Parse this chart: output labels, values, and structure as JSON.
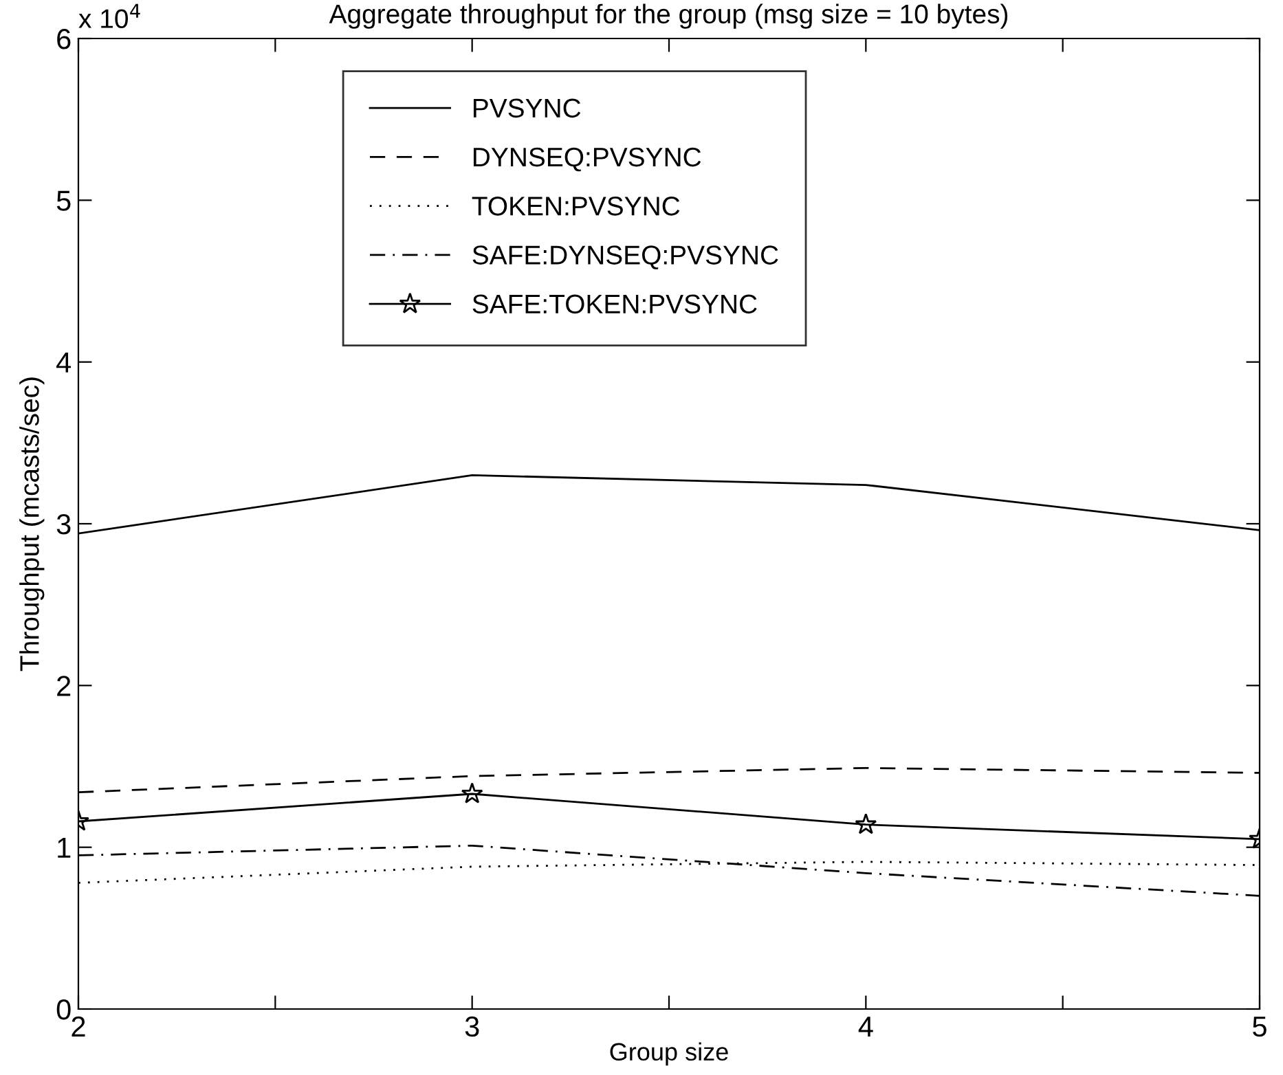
{
  "chart_data": {
    "type": "line",
    "title": "Aggregate throughput for the group (msg size = 10 bytes)",
    "xlabel": "Group size",
    "ylabel": "Throughput (mcasts/sec)",
    "annotations": [
      "x 10$^{4}$"
    ],
    "x": [
      2,
      3,
      4,
      5
    ],
    "series": [
      {
        "name": "PVSYNC",
        "color": "#000000",
        "line_style": "solid",
        "marker": "none",
        "values": [
          2.94,
          3.3,
          3.24,
          2.96
        ]
      },
      {
        "name": "DYNSEQ:PVSYNC",
        "color": "#000000",
        "line_style": "dashed",
        "marker": "none",
        "values": [
          1.34,
          1.44,
          1.49,
          1.46
        ]
      },
      {
        "name": "TOKEN:PVSYNC",
        "color": "#000000",
        "line_style": "dotted",
        "marker": "none",
        "values": [
          0.78,
          0.88,
          0.91,
          0.89
        ]
      },
      {
        "name": "SAFE:DYNSEQ:PVSYNC",
        "color": "#000000",
        "line_style": "dashdot",
        "marker": "none",
        "values": [
          0.95,
          1.01,
          0.84,
          0.7
        ]
      },
      {
        "name": "SAFE:TOKEN:PVSYNC",
        "color": "#000000",
        "line_style": "solid",
        "marker": "star",
        "values": [
          1.16,
          1.33,
          1.14,
          1.05
        ]
      }
    ],
    "xlim": [
      2,
      5
    ],
    "xticks": [
      2,
      {
        "value": 2.5,
        "label": null
      },
      3,
      {
        "value": 3.5,
        "label": null
      },
      4,
      {
        "value": 4.5,
        "label": null
      },
      5
    ],
    "ylim": [
      0,
      6
    ],
    "yticks": [
      0,
      1,
      2,
      3,
      4,
      5,
      6
    ],
    "legend": "top",
    "grid": false
  }
}
